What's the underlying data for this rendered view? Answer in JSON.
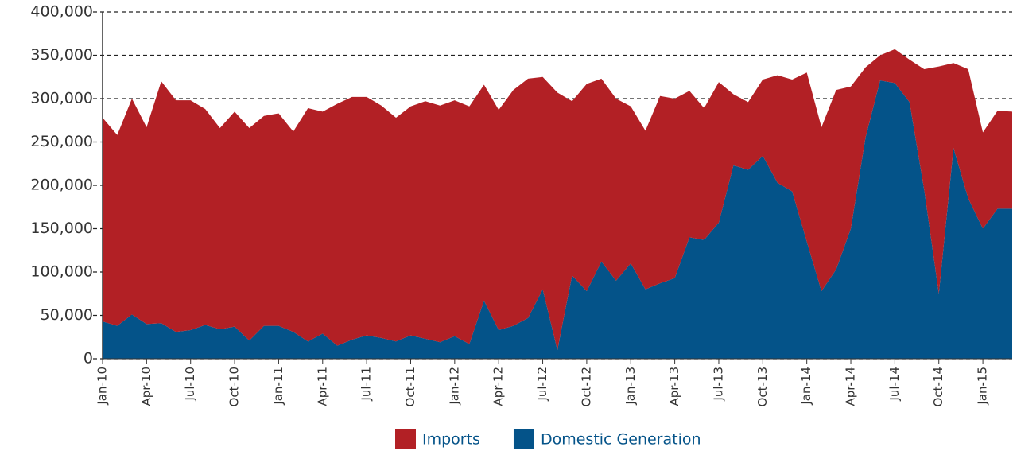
{
  "chart_data": {
    "type": "stacked_area",
    "categories": [
      "Jan-10",
      null,
      null,
      "Apr-10",
      null,
      null,
      "Jul-10",
      null,
      null,
      "Oct-10",
      null,
      null,
      "Jan-11",
      null,
      null,
      "Apr-11",
      null,
      null,
      "Jul-11",
      null,
      null,
      "Oct-11",
      null,
      null,
      "Jan-12",
      null,
      null,
      "Apr-12",
      null,
      null,
      "Jul-12",
      null,
      null,
      "Oct-12",
      null,
      null,
      "Jan-13",
      null,
      null,
      "Apr-13",
      null,
      null,
      "Jul-13",
      null,
      null,
      "Oct-13",
      null,
      null,
      "Jan-14",
      null,
      null,
      "Apr-14",
      null,
      null,
      "Jul-14",
      null,
      null,
      "Oct-14",
      null,
      null,
      "Jan-15",
      null,
      null
    ],
    "series": [
      {
        "name": "Imports",
        "color": "#b22025",
        "values": [
          235000,
          220000,
          249000,
          227000,
          279000,
          267000,
          265000,
          249000,
          232000,
          248000,
          245000,
          242000,
          245000,
          231000,
          269000,
          256000,
          279000,
          280000,
          275000,
          268000,
          258000,
          264000,
          274000,
          273000,
          272000,
          274000,
          249000,
          254000,
          272000,
          276000,
          245000,
          297000,
          201000,
          239000,
          211000,
          210000,
          181000,
          183000,
          216000,
          207000,
          169000,
          152000,
          162000,
          82000,
          78000,
          88000,
          124000,
          129000,
          195000,
          189000,
          207000,
          164000,
          81000,
          29000,
          39000,
          49000,
          139000,
          262000,
          98000,
          149000,
          111000,
          113000,
          112000
        ]
      },
      {
        "name": "Domestic Generation",
        "color": "#045389",
        "values": [
          43000,
          38000,
          51000,
          40000,
          41000,
          31000,
          33000,
          39000,
          34000,
          37000,
          21000,
          38000,
          38000,
          31000,
          20000,
          29000,
          15000,
          22000,
          27000,
          24000,
          20000,
          27000,
          23000,
          19000,
          26000,
          17000,
          67000,
          33000,
          38000,
          47000,
          80000,
          10000,
          96000,
          78000,
          112000,
          90000,
          110000,
          80000,
          87000,
          93000,
          140000,
          137000,
          157000,
          223000,
          218000,
          234000,
          203000,
          193000,
          135000,
          78000,
          103000,
          150000,
          255000,
          321000,
          318000,
          296000,
          195000,
          75000,
          243000,
          185000,
          150000,
          173000,
          173000
        ]
      }
    ],
    "ylim": [
      0,
      400000
    ],
    "yticks": [
      0,
      {
        "value": 50000,
        "label": "50,000"
      },
      {
        "value": 100000,
        "label": "100,000"
      },
      {
        "value": 150000,
        "label": "150,000"
      },
      {
        "value": 200000,
        "label": "200,000"
      },
      {
        "value": 250000,
        "label": "250,000"
      },
      {
        "value": 300000,
        "label": "300,000"
      },
      {
        "value": 350000,
        "label": "350,000"
      },
      {
        "value": 400000,
        "label": "400,000"
      }
    ],
    "grid": true,
    "legend": "bottom",
    "stacked": true
  }
}
